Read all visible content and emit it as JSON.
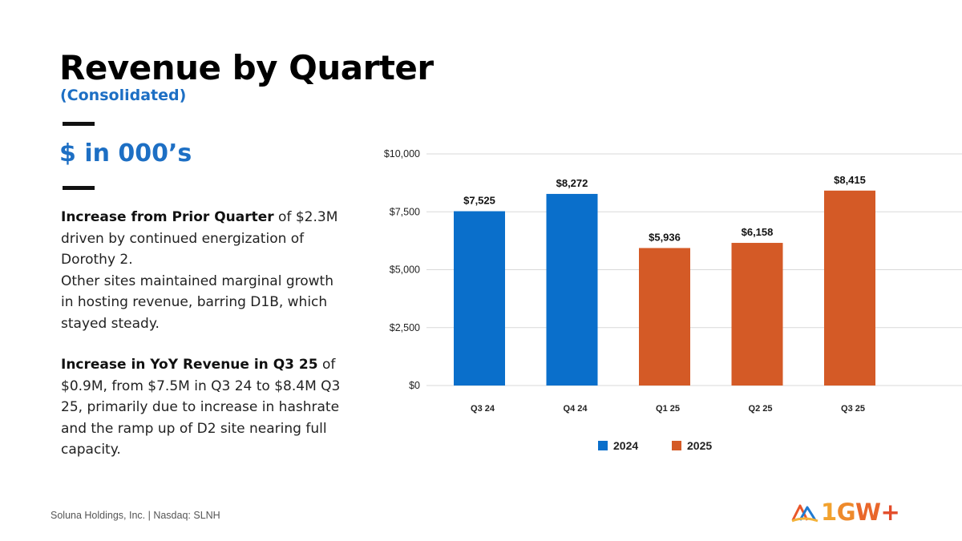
{
  "slide": {
    "title": "Revenue by Quarter",
    "subtitle": "(Consolidated)",
    "units": "$ in 000’s",
    "paragraph1_bold": "Increase from Prior Quarter",
    "paragraph1_rest": " of $2.3M driven by continued energization of Dorothy 2.",
    "paragraph1_line2": "Other sites maintained marginal growth in hosting revenue, barring D1B, which stayed steady.",
    "paragraph2_bold": "Increase in YoY Revenue in Q3 25",
    "paragraph2_rest": " of $0.9M, from $7.5M in Q3 24 to $8.4M Q3 25, primarily due to increase in hashrate and the ramp up of D2 site nearing full capacity.",
    "footer": "Soluna Holdings, Inc. |  Nasdaq: SLNH",
    "logo_text": "1GW+",
    "logo_icon": "soluna-mountain-logo-icon"
  },
  "colors": {
    "accent": "#1d6fc4",
    "series_2024": "#0a6fcb",
    "series_2025": "#d45a26"
  },
  "chart_data": {
    "type": "bar",
    "categories": [
      "Q3 24",
      "Q4 24",
      "Q1 25",
      "Q2 25",
      "Q3 25"
    ],
    "values": [
      7525,
      8272,
      5936,
      6158,
      8415
    ],
    "data_labels": [
      "$7,525",
      "$8,272",
      "$5,936",
      "$6,158",
      "$8,415"
    ],
    "bar_series": [
      "2024",
      "2024",
      "2025",
      "2025",
      "2025"
    ],
    "legend": [
      {
        "name": "2024",
        "color": "#0a6fcb"
      },
      {
        "name": "2025",
        "color": "#d45a26"
      }
    ],
    "legend_position": "bottom",
    "ylim": [
      0,
      10000
    ],
    "yticks": [
      0,
      2500,
      5000,
      7500,
      10000
    ],
    "ytick_labels": [
      "$0",
      "$2,500",
      "$5,000",
      "$7,500",
      "$10,000"
    ],
    "grid": true
  }
}
